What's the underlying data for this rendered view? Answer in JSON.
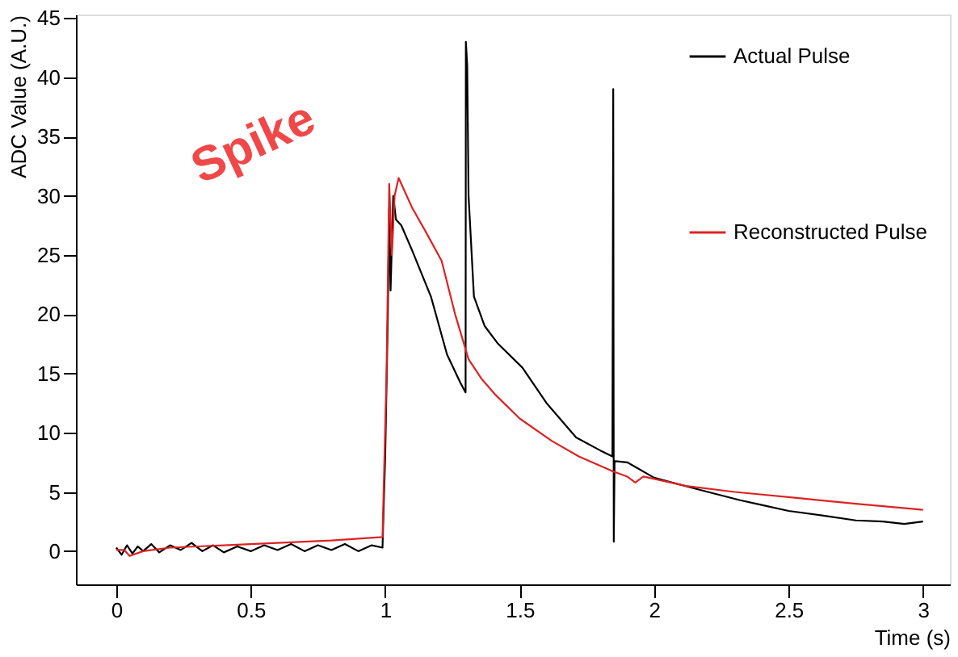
{
  "chart_data": {
    "type": "line",
    "xlabel": "Time (s)",
    "ylabel": "ADC Value (A.U.)",
    "xlim": [
      -0.15,
      3.1
    ],
    "ylim": [
      -2.8,
      45.3
    ],
    "xticks": [
      0,
      0.5,
      1,
      1.5,
      2,
      2.5,
      3
    ],
    "yticks": [
      0,
      5,
      10,
      15,
      20,
      25,
      30,
      35,
      40,
      45
    ],
    "grid": false,
    "legend": "top right",
    "marker": "none",
    "line_style": "solid",
    "annotations": [
      "Spike"
    ],
    "series": [
      {
        "name": "Actual Pulse",
        "color": "#000000",
        "x": [
          0.0,
          0.02,
          0.04,
          0.06,
          0.08,
          0.1,
          0.13,
          0.16,
          0.2,
          0.24,
          0.28,
          0.32,
          0.36,
          0.4,
          0.45,
          0.5,
          0.55,
          0.6,
          0.65,
          0.7,
          0.75,
          0.8,
          0.85,
          0.9,
          0.95,
          0.99,
          1.0,
          1.01,
          1.015,
          1.02,
          1.03,
          1.04,
          1.06,
          1.1,
          1.17,
          1.23,
          1.28,
          1.299,
          1.3,
          1.305,
          1.31,
          1.33,
          1.37,
          1.42,
          1.51,
          1.6,
          1.71,
          1.8,
          1.845,
          1.848,
          1.85,
          1.853,
          1.9,
          2.0,
          2.1,
          2.2,
          2.32,
          2.4,
          2.5,
          2.63,
          2.75,
          2.85,
          2.93,
          3.0
        ],
        "values": [
          0.3,
          -0.3,
          0.5,
          -0.2,
          0.4,
          0.0,
          0.6,
          -0.1,
          0.5,
          0.1,
          0.7,
          0.0,
          0.5,
          -0.1,
          0.4,
          0.0,
          0.5,
          0.1,
          0.6,
          0.0,
          0.5,
          0.1,
          0.6,
          0.0,
          0.5,
          0.3,
          8,
          20,
          29,
          22,
          30,
          28,
          27.5,
          25.4,
          21.5,
          16.6,
          14.2,
          13.4,
          43,
          41,
          30,
          21.5,
          19,
          17.5,
          15.5,
          12.5,
          9.6,
          8.5,
          8.0,
          39,
          0.8,
          7.6,
          7.5,
          6.2,
          5.6,
          5.0,
          4.3,
          3.9,
          3.4,
          3.0,
          2.6,
          2.5,
          2.3,
          2.5
        ]
      },
      {
        "name": "Reconstructed Pulse",
        "color": "#dd2222",
        "x": [
          0,
          0.03,
          0.05,
          0.1,
          0.2,
          0.4,
          0.6,
          0.8,
          0.99,
          1.005,
          1.015,
          1.025,
          1.035,
          1.05,
          1.1,
          1.15,
          1.21,
          1.26,
          1.31,
          1.36,
          1.41,
          1.5,
          1.62,
          1.72,
          1.84,
          1.9,
          1.93,
          1.96,
          2.12,
          2.3,
          2.53,
          2.75,
          3.0
        ],
        "values": [
          0.1,
          0.1,
          -0.4,
          0.0,
          0.3,
          0.5,
          0.7,
          0.9,
          1.2,
          15,
          31,
          25,
          30,
          31.5,
          29,
          27,
          24.5,
          20,
          16.2,
          14.5,
          13.2,
          11.2,
          9.3,
          8.0,
          6.8,
          6.3,
          5.8,
          6.3,
          5.5,
          5.0,
          4.5,
          4.0,
          3.5
        ]
      }
    ]
  }
}
